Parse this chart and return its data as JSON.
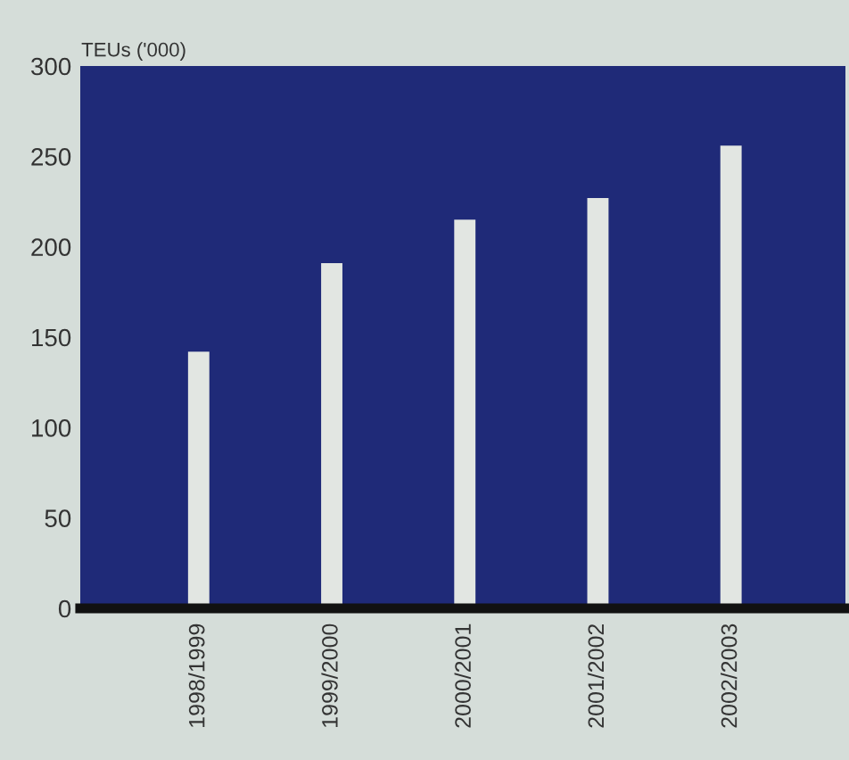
{
  "chart_data": {
    "type": "bar",
    "ylabel": "TEUs ('000)",
    "categories": [
      "1998/1999",
      "1999/2000",
      "2000/2001",
      "2001/2002",
      "2002/2003"
    ],
    "values": [
      142,
      191,
      215,
      227,
      256
    ],
    "color": "#e2e6e2",
    "ylim": [
      0,
      300
    ],
    "yticks": [
      0,
      50,
      100,
      150,
      200,
      250,
      300
    ],
    "grid": false
  }
}
